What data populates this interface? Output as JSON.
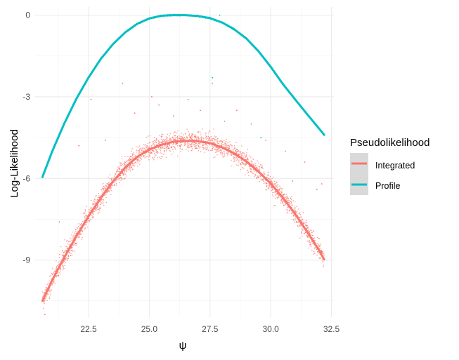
{
  "chart_data": {
    "type": "scatter",
    "xlabel": "ψ",
    "ylabel": "Log-Likelihood",
    "xlim": [
      20.3,
      32.6
    ],
    "ylim": [
      -11.1,
      0.3
    ],
    "x_ticks": [
      22.5,
      25.0,
      27.5,
      30.0,
      32.5
    ],
    "x_tick_labels": [
      "22.5",
      "25.0",
      "27.5",
      "30.0",
      "32.5"
    ],
    "y_ticks": [
      0,
      -3,
      -6,
      -9
    ],
    "y_tick_labels": [
      "0",
      "-3",
      "-6",
      "-9"
    ],
    "grid": true,
    "legend": {
      "title": "Pseudolikelihood",
      "position": "right",
      "entries": [
        {
          "label": "Integrated",
          "color": "#F8766D"
        },
        {
          "label": "Profile",
          "color": "#00BFC4"
        }
      ]
    },
    "series": [
      {
        "name": "Integrated",
        "kind": "line",
        "color": "#F8766D",
        "x": [
          20.6,
          21.0,
          21.5,
          22.0,
          22.5,
          23.0,
          23.5,
          24.0,
          24.5,
          25.0,
          25.5,
          26.0,
          26.5,
          27.0,
          27.5,
          28.0,
          28.5,
          29.0,
          29.5,
          30.0,
          30.5,
          31.0,
          31.5,
          32.0,
          32.2
        ],
        "y": [
          -10.5,
          -9.74,
          -8.9,
          -8.12,
          -7.39,
          -6.72,
          -6.12,
          -5.61,
          -5.21,
          -4.94,
          -4.76,
          -4.65,
          -4.62,
          -4.63,
          -4.7,
          -4.86,
          -5.08,
          -5.38,
          -5.75,
          -6.19,
          -6.71,
          -7.3,
          -7.96,
          -8.66,
          -8.98
        ]
      },
      {
        "name": "Profile",
        "kind": "line",
        "color": "#00BFC4",
        "x": [
          20.6,
          21.0,
          21.5,
          22.0,
          22.5,
          23.0,
          23.5,
          24.0,
          24.5,
          25.0,
          25.5,
          26.0,
          26.5,
          27.0,
          27.5,
          28.0,
          28.5,
          29.0,
          29.5,
          30.0,
          30.5,
          31.0,
          31.5,
          32.0,
          32.2
        ],
        "y": [
          -5.95,
          -5.01,
          -3.98,
          -3.07,
          -2.29,
          -1.61,
          -1.07,
          -0.64,
          -0.32,
          -0.12,
          -0.02,
          0.0,
          0.0,
          -0.03,
          -0.11,
          -0.27,
          -0.52,
          -0.86,
          -1.33,
          -1.9,
          -2.53,
          -3.09,
          -3.64,
          -4.18,
          -4.4
        ]
      },
      {
        "name": "Integrated",
        "kind": "points",
        "color": "#F8766D",
        "spread_sd": 0.18,
        "point_count": 2400,
        "outliers": [
          [
            20.7,
            -11.0
          ],
          [
            21.3,
            -7.6
          ],
          [
            22.1,
            -4.8
          ],
          [
            22.6,
            -3.1
          ],
          [
            23.2,
            -4.6
          ],
          [
            23.9,
            -2.5
          ],
          [
            24.4,
            -3.6
          ],
          [
            25.1,
            -3.0
          ],
          [
            25.4,
            -3.3
          ],
          [
            26.0,
            -3.7
          ],
          [
            26.6,
            -3.1
          ],
          [
            27.1,
            -3.5
          ],
          [
            27.6,
            -2.5
          ],
          [
            28.1,
            -3.9
          ],
          [
            28.6,
            -3.5
          ],
          [
            29.2,
            -4.0
          ],
          [
            29.8,
            -4.6
          ],
          [
            30.6,
            -5.0
          ],
          [
            30.9,
            -6.1
          ],
          [
            31.4,
            -5.4
          ],
          [
            31.9,
            -6.4
          ],
          [
            32.1,
            -6.2
          ]
        ]
      },
      {
        "name": "Profile",
        "kind": "points",
        "color": "#00BFC4",
        "spread_sd": 0.015,
        "point_count": 1100,
        "outliers": [
          [
            27.9,
            0.0
          ],
          [
            27.6,
            -2.3
          ],
          [
            29.6,
            -4.5
          ]
        ]
      }
    ]
  }
}
